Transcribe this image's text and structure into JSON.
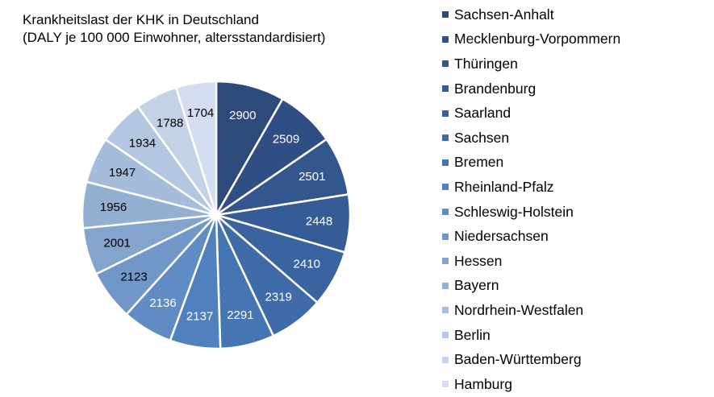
{
  "chart_data": {
    "type": "pie",
    "title": "Krankheitslast der KHK in Deutschland",
    "subtitle": "(DALY je 100 000 Einwohner, altersstandardisiert)",
    "legend_position": "right",
    "categories": [
      "Sachsen-Anhalt",
      "Mecklenburg-Vorpommern",
      "Thüringen",
      "Brandenburg",
      "Saarland",
      "Sachsen",
      "Bremen",
      "Rheinland-Pfalz",
      "Schleswig-Holstein",
      "Niedersachsen",
      "Hessen",
      "Bayern",
      "Nordrhein-Westfalen",
      "Berlin",
      "Baden-Württemberg",
      "Hamburg"
    ],
    "values": [
      2900,
      2509,
      2501,
      2448,
      2410,
      2319,
      2291,
      2137,
      2136,
      2123,
      2001,
      1956,
      1947,
      1934,
      1788,
      1704
    ],
    "colors": [
      "#2e4a7a",
      "#2f4f84",
      "#33568f",
      "#355c97",
      "#3a639f",
      "#3f6ba8",
      "#4575b3",
      "#5080bd",
      "#5f8cc3",
      "#7097c8",
      "#82a4cd",
      "#93b0d3",
      "#a5bddb",
      "#b4c7e1",
      "#c4d2e7",
      "#d3ddef"
    ]
  }
}
